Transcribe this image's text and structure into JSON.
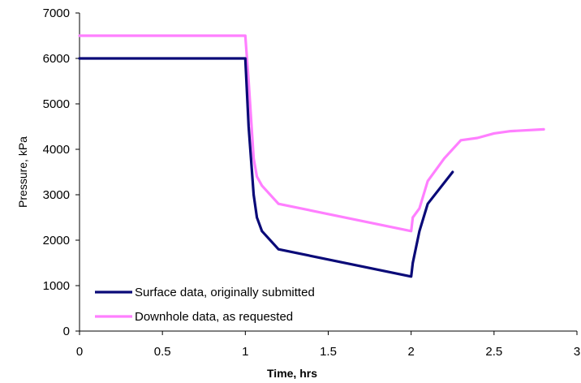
{
  "chart_data": {
    "type": "line",
    "title": "",
    "xlabel": "Time, hrs",
    "ylabel": "Pressure, kPa",
    "xlim": [
      0,
      3
    ],
    "ylim": [
      0,
      7000
    ],
    "xticks": [
      "0",
      "0.5",
      "1",
      "1.5",
      "2",
      "2.5",
      "3"
    ],
    "xtick_values": [
      0,
      0.5,
      1,
      1.5,
      2,
      2.5,
      3
    ],
    "yticks": [
      "0",
      "1000",
      "2000",
      "3000",
      "4000",
      "5000",
      "6000",
      "7000"
    ],
    "ytick_values": [
      0,
      1000,
      2000,
      3000,
      4000,
      5000,
      6000,
      7000
    ],
    "grid": false,
    "legend_position": "bottom-left",
    "series": [
      {
        "name": "Surface data, originally submitted",
        "color": "#0a0a78",
        "points": [
          [
            0,
            6000
          ],
          [
            1.0,
            6000
          ],
          [
            1.02,
            4500
          ],
          [
            1.05,
            3000
          ],
          [
            1.07,
            2500
          ],
          [
            1.1,
            2200
          ],
          [
            1.2,
            1800
          ],
          [
            2.0,
            1200
          ],
          [
            2.01,
            1500
          ],
          [
            2.05,
            2200
          ],
          [
            2.1,
            2800
          ],
          [
            2.25,
            3500
          ]
        ]
      },
      {
        "name": "Downhole data, as requested",
        "color": "#ff7fff",
        "points": [
          [
            0,
            6500
          ],
          [
            1.0,
            6500
          ],
          [
            1.02,
            5500
          ],
          [
            1.05,
            3800
          ],
          [
            1.07,
            3400
          ],
          [
            1.1,
            3200
          ],
          [
            1.2,
            2800
          ],
          [
            2.0,
            2200
          ],
          [
            2.01,
            2500
          ],
          [
            2.05,
            2700
          ],
          [
            2.1,
            3300
          ],
          [
            2.2,
            3800
          ],
          [
            2.3,
            4200
          ],
          [
            2.4,
            4250
          ],
          [
            2.5,
            4350
          ],
          [
            2.6,
            4400
          ],
          [
            2.8,
            4440
          ]
        ]
      }
    ]
  }
}
